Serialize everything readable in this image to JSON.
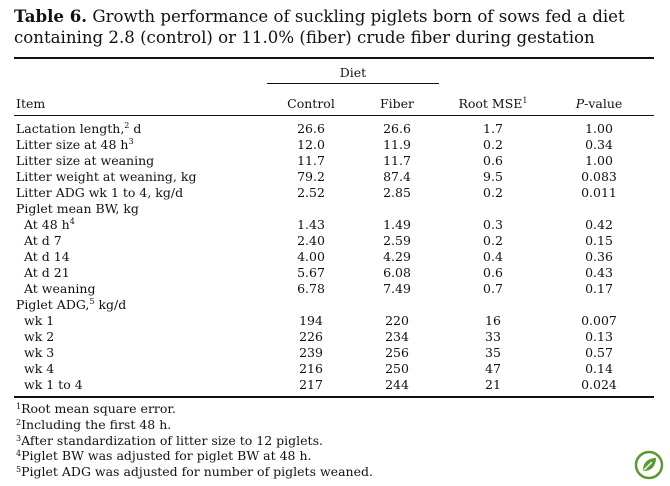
{
  "caption": {
    "label": "Table 6.",
    "text": "Growth performance of suckling piglets born of sows fed a diet containing 2.8 (control) or 11.0% (fiber) crude fiber during gestation"
  },
  "header": {
    "group": "Diet",
    "item": "Item",
    "control": "Control",
    "fiber": "Fiber",
    "rmse": "Root MSE",
    "rmse_sup": "1",
    "p_italic": "P",
    "p_rest": "-value"
  },
  "rows": [
    {
      "label": "Lactation length,",
      "sup": "2",
      "after": " d",
      "control": "26.6",
      "fiber": "26.6",
      "rmse": "1.7",
      "p": "1.00"
    },
    {
      "label": "Litter size at 48 h",
      "sup": "3",
      "after": "",
      "control": "12.0",
      "fiber": "11.9",
      "rmse": "0.2",
      "p": "0.34"
    },
    {
      "label": "Litter size at weaning",
      "sup": "",
      "after": "",
      "control": "11.7",
      "fiber": "11.7",
      "rmse": "0.6",
      "p": "1.00"
    },
    {
      "label": "Litter weight at weaning, kg",
      "sup": "",
      "after": "",
      "control": "79.2",
      "fiber": "87.4",
      "rmse": "9.5",
      "p": "0.083"
    },
    {
      "label": "Litter ADG wk 1 to 4, kg/d",
      "sup": "",
      "after": "",
      "control": "2.52",
      "fiber": "2.85",
      "rmse": "0.2",
      "p": "0.011"
    },
    {
      "label": "Piglet mean BW, kg",
      "sup": "",
      "after": "",
      "control": "",
      "fiber": "",
      "rmse": "",
      "p": ""
    },
    {
      "label": "At 48 h",
      "sup": "4",
      "after": "",
      "control": "1.43",
      "fiber": "1.49",
      "rmse": "0.3",
      "p": "0.42"
    },
    {
      "label": "At d 7",
      "sup": "",
      "after": "",
      "control": "2.40",
      "fiber": "2.59",
      "rmse": "0.2",
      "p": "0.15"
    },
    {
      "label": "At d 14",
      "sup": "",
      "after": "",
      "control": "4.00",
      "fiber": "4.29",
      "rmse": "0.4",
      "p": "0.36"
    },
    {
      "label": "At d 21",
      "sup": "",
      "after": "",
      "control": "5.67",
      "fiber": "6.08",
      "rmse": "0.6",
      "p": "0.43"
    },
    {
      "label": "At weaning",
      "sup": "",
      "after": "",
      "control": "6.78",
      "fiber": "7.49",
      "rmse": "0.7",
      "p": "0.17"
    },
    {
      "label": "Piglet ADG,",
      "sup": "5",
      "after": " kg/d",
      "control": "",
      "fiber": "",
      "rmse": "",
      "p": ""
    },
    {
      "label": "wk 1",
      "sup": "",
      "after": "",
      "control": "194",
      "fiber": "220",
      "rmse": "16",
      "p": "0.007"
    },
    {
      "label": "wk 2",
      "sup": "",
      "after": "",
      "control": "226",
      "fiber": "234",
      "rmse": "33",
      "p": "0.13"
    },
    {
      "label": "wk 3",
      "sup": "",
      "after": "",
      "control": "239",
      "fiber": "256",
      "rmse": "35",
      "p": "0.57"
    },
    {
      "label": "wk 4",
      "sup": "",
      "after": "",
      "control": "216",
      "fiber": "250",
      "rmse": "47",
      "p": "0.14"
    },
    {
      "label": "wk 1 to 4",
      "sup": "",
      "after": "",
      "control": "217",
      "fiber": "244",
      "rmse": "21",
      "p": "0.024"
    }
  ],
  "notes": [
    {
      "sup": "1",
      "text": "Root mean square error."
    },
    {
      "sup": "2",
      "text": "Including the first 48 h."
    },
    {
      "sup": "3",
      "text": "After standardization of litter size to 12 piglets."
    },
    {
      "sup": "4",
      "text": "Piglet BW was adjusted for piglet BW at 48 h."
    },
    {
      "sup": "5",
      "text": "Piglet ADG was adjusted for number of piglets weaned."
    }
  ],
  "logo_icon": "leaf-badge-icon",
  "colors": {
    "logo": "#5a9a2e"
  }
}
